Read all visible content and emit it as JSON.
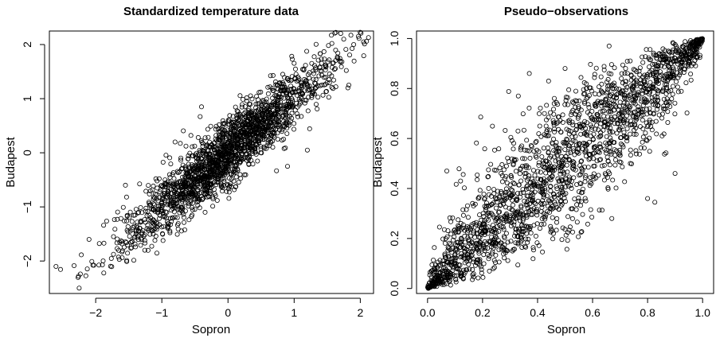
{
  "chart_data": [
    {
      "type": "scatter",
      "title": "Standardized temperature data",
      "xlabel": "Sopron",
      "ylabel": "Budapest",
      "xlim": [
        -2.7,
        2.2
      ],
      "ylim": [
        -2.6,
        2.25
      ],
      "x_ticks": [
        -2,
        -1,
        0,
        1,
        2
      ],
      "y_ticks": [
        -2,
        -1,
        0,
        1,
        2
      ],
      "x_tick_labels": [
        "−2",
        "−1",
        "0",
        "1",
        "2"
      ],
      "y_tick_labels": [
        "−2",
        "−1",
        "0",
        "1",
        "2"
      ],
      "marker": "open circle",
      "approx_point_count": 2000,
      "trend": {
        "slope": 1.0,
        "intercept": 0.0,
        "residual_sd": 0.3
      },
      "notable_points": [
        {
          "x": -2.6,
          "y": -2.1
        },
        {
          "x": -2.25,
          "y": -2.5
        },
        {
          "x": -2.1,
          "y": -1.6
        },
        {
          "x": -1.35,
          "y": -1.1
        },
        {
          "x": -0.4,
          "y": 0.85
        },
        {
          "x": 1.75,
          "y": 2.1
        },
        {
          "x": 1.9,
          "y": 2.0
        },
        {
          "x": 2.05,
          "y": 2.05
        },
        {
          "x": 1.2,
          "y": 0.05
        },
        {
          "x": 0.9,
          "y": -0.25
        },
        {
          "x": -0.8,
          "y": 0.2
        },
        {
          "x": -1.55,
          "y": -0.6
        }
      ]
    },
    {
      "type": "scatter",
      "title": "Pseudo−observations",
      "xlabel": "Sopron",
      "ylabel": "Budapest",
      "xlim": [
        -0.04,
        1.04
      ],
      "ylim": [
        -0.02,
        1.03
      ],
      "x_ticks": [
        0.0,
        0.2,
        0.4,
        0.6,
        0.8,
        1.0
      ],
      "y_ticks": [
        0.0,
        0.2,
        0.4,
        0.6,
        0.8,
        1.0
      ],
      "x_tick_labels": [
        "0.0",
        "0.2",
        "0.4",
        "0.6",
        "0.8",
        "1.0"
      ],
      "y_tick_labels": [
        "0.0",
        "0.2",
        "0.4",
        "0.6",
        "0.8",
        "1.0"
      ],
      "marker": "open circle",
      "approx_point_count": 2000,
      "trend": {
        "slope": 1.0,
        "intercept": 0.0,
        "residual_sd": 0.3
      },
      "notable_points": [
        {
          "x": 0.33,
          "y": 0.77
        },
        {
          "x": 0.37,
          "y": 0.86
        },
        {
          "x": 0.44,
          "y": 0.83
        },
        {
          "x": 0.5,
          "y": 0.88
        },
        {
          "x": 0.66,
          "y": 0.97
        },
        {
          "x": 0.07,
          "y": 0.47
        },
        {
          "x": 0.12,
          "y": 0.43
        },
        {
          "x": 0.8,
          "y": 0.36
        },
        {
          "x": 0.67,
          "y": 0.28
        },
        {
          "x": 0.9,
          "y": 0.46
        },
        {
          "x": 0.98,
          "y": 0.99
        },
        {
          "x": 0.02,
          "y": 0.02
        }
      ]
    }
  ]
}
